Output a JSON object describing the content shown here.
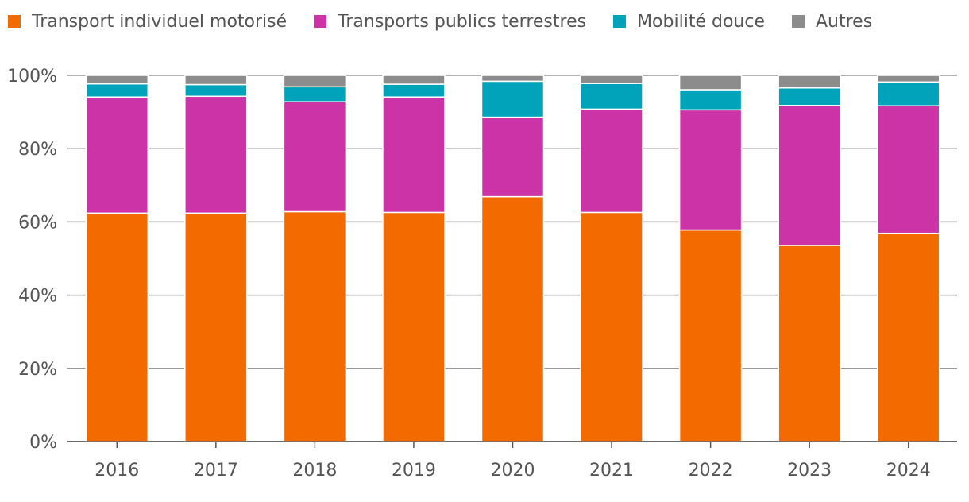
{
  "chart_data": {
    "type": "bar",
    "stacked": true,
    "categories": [
      "2016",
      "2017",
      "2018",
      "2019",
      "2020",
      "2021",
      "2022",
      "2023",
      "2024"
    ],
    "series": [
      {
        "name": "Transport individuel motorisé",
        "color": "#f26a00",
        "values": [
          62.4,
          62.4,
          62.8,
          62.6,
          66.9,
          62.6,
          57.8,
          53.6,
          56.9
        ]
      },
      {
        "name": "Transports publics terrestres",
        "color": "#cc33a6",
        "values": [
          31.7,
          31.9,
          30.0,
          31.5,
          21.7,
          28.2,
          32.8,
          38.2,
          34.8
        ]
      },
      {
        "name": "Mobilité douce",
        "color": "#00a3b9",
        "values": [
          3.6,
          3.2,
          4.1,
          3.5,
          9.8,
          7.0,
          5.5,
          4.8,
          6.5
        ]
      },
      {
        "name": "Autres",
        "color": "#8c8c8c",
        "values": [
          2.3,
          2.5,
          3.1,
          2.4,
          1.6,
          2.2,
          3.9,
          3.4,
          1.8
        ]
      }
    ],
    "y_ticks": [
      "0%",
      "20%",
      "40%",
      "60%",
      "80%",
      "100%"
    ],
    "ylim": [
      0,
      100
    ],
    "grid": true,
    "legend_position": "top"
  }
}
